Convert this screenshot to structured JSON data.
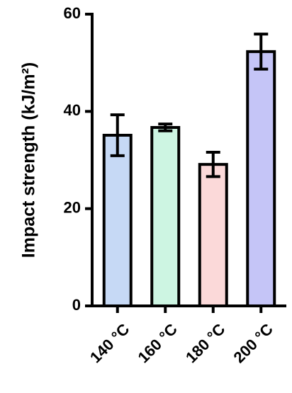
{
  "chart_data": {
    "type": "bar",
    "y_label": "Impact strength (kJ/m²)",
    "categories": [
      "140 °C",
      "160 °C",
      "180 °C",
      "200 °C"
    ],
    "values": [
      35.1,
      36.7,
      29.1,
      52.3
    ],
    "errors": [
      4.2,
      0.7,
      2.5,
      3.6
    ],
    "colors": [
      "#c6d9f5",
      "#cdf5e2",
      "#fbd9d9",
      "#c5c5f7"
    ],
    "ylim": [
      0,
      60
    ],
    "yticks": [
      0,
      20,
      40,
      60
    ],
    "grid": false
  }
}
